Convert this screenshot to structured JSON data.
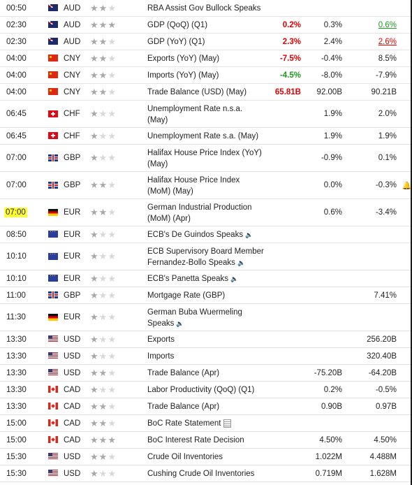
{
  "events": [
    {
      "time": "00:50",
      "cur": "AUD",
      "flag": "aud",
      "imp": 2,
      "event": "RBA Assist Gov Bullock Speaks",
      "actual": "",
      "actual_color": "",
      "forecast": "",
      "previous": "",
      "previous_color": "",
      "lines": 1,
      "speech": false,
      "report": false,
      "alert": false,
      "highlight": false
    },
    {
      "time": "02:30",
      "cur": "AUD",
      "flag": "aud",
      "imp": 3,
      "event": "GDP (QoQ) (Q1)",
      "actual": "0.2%",
      "actual_color": "red",
      "forecast": "0.3%",
      "previous": "0.6%",
      "previous_color": "green",
      "lines": 1,
      "speech": false,
      "report": false,
      "alert": false,
      "highlight": false
    },
    {
      "time": "02:30",
      "cur": "AUD",
      "flag": "aud",
      "imp": 2,
      "event": "GDP (YoY) (Q1)",
      "actual": "2.3%",
      "actual_color": "red",
      "forecast": "2.4%",
      "previous": "2.6%",
      "previous_color": "red",
      "lines": 1,
      "speech": false,
      "report": false,
      "alert": false,
      "highlight": false
    },
    {
      "time": "04:00",
      "cur": "CNY",
      "flag": "cny",
      "imp": 2,
      "event": "Exports (YoY) (May)",
      "actual": "-7.5%",
      "actual_color": "red",
      "forecast": "-0.4%",
      "previous": "8.5%",
      "previous_color": "",
      "lines": 1,
      "speech": false,
      "report": false,
      "alert": false,
      "highlight": false
    },
    {
      "time": "04:00",
      "cur": "CNY",
      "flag": "cny",
      "imp": 2,
      "event": "Imports (YoY) (May)",
      "actual": "-4.5%",
      "actual_color": "green",
      "forecast": "-8.0%",
      "previous": "-7.9%",
      "previous_color": "",
      "lines": 1,
      "speech": false,
      "report": false,
      "alert": false,
      "highlight": false
    },
    {
      "time": "04:00",
      "cur": "CNY",
      "flag": "cny",
      "imp": 2,
      "event": "Trade Balance (USD) (May)",
      "actual": "65.81B",
      "actual_color": "red",
      "forecast": "92.00B",
      "previous": "90.21B",
      "previous_color": "",
      "lines": 1,
      "speech": false,
      "report": false,
      "alert": false,
      "highlight": false
    },
    {
      "time": "06:45",
      "cur": "CHF",
      "flag": "chf",
      "imp": 1,
      "event": "Unemployment Rate n.s.a. (May)",
      "actual": "",
      "actual_color": "",
      "forecast": "1.9%",
      "previous": "2.0%",
      "previous_color": "",
      "lines": 2,
      "speech": false,
      "report": false,
      "alert": false,
      "highlight": false
    },
    {
      "time": "06:45",
      "cur": "CHF",
      "flag": "chf",
      "imp": 1,
      "event": "Unemployment Rate s.a. (May)",
      "actual": "",
      "actual_color": "",
      "forecast": "1.9%",
      "previous": "1.9%",
      "previous_color": "",
      "lines": 1,
      "speech": false,
      "report": false,
      "alert": false,
      "highlight": false
    },
    {
      "time": "07:00",
      "cur": "GBP",
      "flag": "gbp",
      "imp": 1,
      "event": "Halifax House Price Index (YoY) (May)",
      "actual": "",
      "actual_color": "",
      "forecast": "-0.9%",
      "previous": "0.1%",
      "previous_color": "",
      "lines": 2,
      "speech": false,
      "report": false,
      "alert": false,
      "highlight": false
    },
    {
      "time": "07:00",
      "cur": "GBP",
      "flag": "gbp",
      "imp": 2,
      "event": "Halifax House Price Index (MoM) (May)",
      "actual": "",
      "actual_color": "",
      "forecast": "0.0%",
      "previous": "-0.3%",
      "previous_color": "",
      "lines": 2,
      "speech": false,
      "report": false,
      "alert": true,
      "highlight": false
    },
    {
      "time": "07:00",
      "cur": "EUR",
      "flag": "de",
      "imp": 2,
      "event": "German Industrial Production (MoM) (Apr)",
      "actual": "",
      "actual_color": "",
      "forecast": "0.6%",
      "previous": "-3.4%",
      "previous_color": "",
      "lines": 2,
      "speech": false,
      "report": false,
      "alert": false,
      "highlight": true
    },
    {
      "time": "08:50",
      "cur": "EUR",
      "flag": "eur",
      "imp": 1,
      "event": "ECB's De Guindos Speaks",
      "actual": "",
      "actual_color": "",
      "forecast": "",
      "previous": "",
      "previous_color": "",
      "lines": 1,
      "speech": true,
      "report": false,
      "alert": false,
      "highlight": false
    },
    {
      "time": "10:10",
      "cur": "EUR",
      "flag": "eur",
      "imp": 1,
      "event": "ECB Supervisory Board Member Fernandez-Bollo Speaks",
      "actual": "",
      "actual_color": "",
      "forecast": "",
      "previous": "",
      "previous_color": "",
      "lines": 2,
      "speech": true,
      "report": false,
      "alert": false,
      "highlight": false
    },
    {
      "time": "10:10",
      "cur": "EUR",
      "flag": "eur",
      "imp": 1,
      "event": "ECB's Panetta Speaks",
      "actual": "",
      "actual_color": "",
      "forecast": "",
      "previous": "",
      "previous_color": "",
      "lines": 1,
      "speech": true,
      "report": false,
      "alert": false,
      "highlight": false
    },
    {
      "time": "11:00",
      "cur": "GBP",
      "flag": "gbp",
      "imp": 1,
      "event": "Mortgage Rate (GBP)",
      "actual": "",
      "actual_color": "",
      "forecast": "",
      "previous": "7.41%",
      "previous_color": "",
      "lines": 1,
      "speech": false,
      "report": false,
      "alert": false,
      "highlight": false
    },
    {
      "time": "11:30",
      "cur": "EUR",
      "flag": "de",
      "imp": 1,
      "event": "German Buba Wuermeling Speaks",
      "actual": "",
      "actual_color": "",
      "forecast": "",
      "previous": "",
      "previous_color": "",
      "lines": 2,
      "speech": true,
      "report": false,
      "alert": false,
      "highlight": false
    },
    {
      "time": "13:30",
      "cur": "USD",
      "flag": "usd",
      "imp": 1,
      "event": "Exports",
      "actual": "",
      "actual_color": "",
      "forecast": "",
      "previous": "256.20B",
      "previous_color": "",
      "lines": 1,
      "speech": false,
      "report": false,
      "alert": false,
      "highlight": false
    },
    {
      "time": "13:30",
      "cur": "USD",
      "flag": "usd",
      "imp": 1,
      "event": "Imports",
      "actual": "",
      "actual_color": "",
      "forecast": "",
      "previous": "320.40B",
      "previous_color": "",
      "lines": 1,
      "speech": false,
      "report": false,
      "alert": false,
      "highlight": false
    },
    {
      "time": "13:30",
      "cur": "USD",
      "flag": "usd",
      "imp": 2,
      "event": "Trade Balance (Apr)",
      "actual": "",
      "actual_color": "",
      "forecast": "-75.20B",
      "previous": "-64.20B",
      "previous_color": "",
      "lines": 1,
      "speech": false,
      "report": false,
      "alert": false,
      "highlight": false
    },
    {
      "time": "13:30",
      "cur": "CAD",
      "flag": "cad",
      "imp": 1,
      "event": "Labor Productivity (QoQ) (Q1)",
      "actual": "",
      "actual_color": "",
      "forecast": "0.2%",
      "previous": "-0.5%",
      "previous_color": "",
      "lines": 1,
      "speech": false,
      "report": false,
      "alert": false,
      "highlight": false
    },
    {
      "time": "13:30",
      "cur": "CAD",
      "flag": "cad",
      "imp": 2,
      "event": "Trade Balance (Apr)",
      "actual": "",
      "actual_color": "",
      "forecast": "0.90B",
      "previous": "0.97B",
      "previous_color": "",
      "lines": 1,
      "speech": false,
      "report": false,
      "alert": false,
      "highlight": false
    },
    {
      "time": "15:00",
      "cur": "CAD",
      "flag": "cad",
      "imp": 2,
      "event": "BoC Rate Statement",
      "actual": "",
      "actual_color": "",
      "forecast": "",
      "previous": "",
      "previous_color": "",
      "lines": 1,
      "speech": false,
      "report": true,
      "alert": false,
      "highlight": false
    },
    {
      "time": "15:00",
      "cur": "CAD",
      "flag": "cad",
      "imp": 3,
      "event": "BoC Interest Rate Decision",
      "actual": "",
      "actual_color": "",
      "forecast": "4.50%",
      "previous": "4.50%",
      "previous_color": "",
      "lines": 1,
      "speech": false,
      "report": false,
      "alert": false,
      "highlight": false
    },
    {
      "time": "15:30",
      "cur": "USD",
      "flag": "usd",
      "imp": 2,
      "event": "Crude Oil Inventories",
      "actual": "",
      "actual_color": "",
      "forecast": "1.022M",
      "previous": "4.488M",
      "previous_color": "",
      "lines": 1,
      "speech": false,
      "report": false,
      "alert": false,
      "highlight": false
    },
    {
      "time": "15:30",
      "cur": "USD",
      "flag": "usd",
      "imp": 1,
      "event": "Cushing Crude Oil Inventories",
      "actual": "",
      "actual_color": "",
      "forecast": "0.719M",
      "previous": "1.628M",
      "previous_color": "",
      "lines": 1,
      "speech": false,
      "report": false,
      "alert": false,
      "highlight": false
    }
  ]
}
